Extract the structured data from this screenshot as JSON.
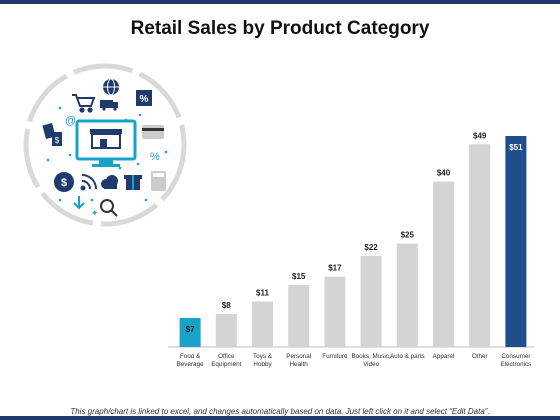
{
  "title": "Retail Sales by Product Category",
  "footer": "This graph/chart is linked to excel, and changes automatically based on data. Just left click on it and select “Edit Data”.",
  "icons": {
    "globe": "globe-icon",
    "cart": "shopping-cart-icon",
    "truck": "truck-icon",
    "percent_tag": "percent-tag-icon",
    "email": "at-icon",
    "price_tags": "price-tag-icon",
    "store": "online-store-icon",
    "credit_card": "credit-card-icon",
    "percent": "percent-icon",
    "dollar_coin": "dollar-coin-icon",
    "wifi": "wifi-icon",
    "cloud": "cloud-icon",
    "gift": "gift-icon",
    "calculator": "calculator-icon",
    "download": "download-icon",
    "search": "magnifier-icon",
    "sparkle": "sparkle-icon"
  },
  "colors": {
    "default_bar": "#d4d4d4",
    "highlight_low": "#17a2c8",
    "highlight_high": "#1f4e8c",
    "ring": "#d9d9d9",
    "icon_dark": "#1f3b6e",
    "dots": "#17a2c8"
  },
  "chart_data": {
    "type": "bar",
    "categories": [
      "Food & Beverage",
      "Office Equipment",
      "Toys & Hobby",
      "Personal Health",
      "Furniture",
      "Books, Music, Video",
      "Auto & parts",
      "Apparel",
      "Other",
      "Consumer Electronics"
    ],
    "values": [
      7,
      8,
      11,
      15,
      17,
      22,
      25,
      40,
      49,
      51
    ],
    "value_labels": [
      "$7",
      "$8",
      "$11",
      "$15",
      "$17",
      "$22",
      "$25",
      "$40",
      "$49",
      "$51"
    ],
    "highlight": [
      0,
      9
    ],
    "ylim": [
      0,
      51
    ]
  }
}
